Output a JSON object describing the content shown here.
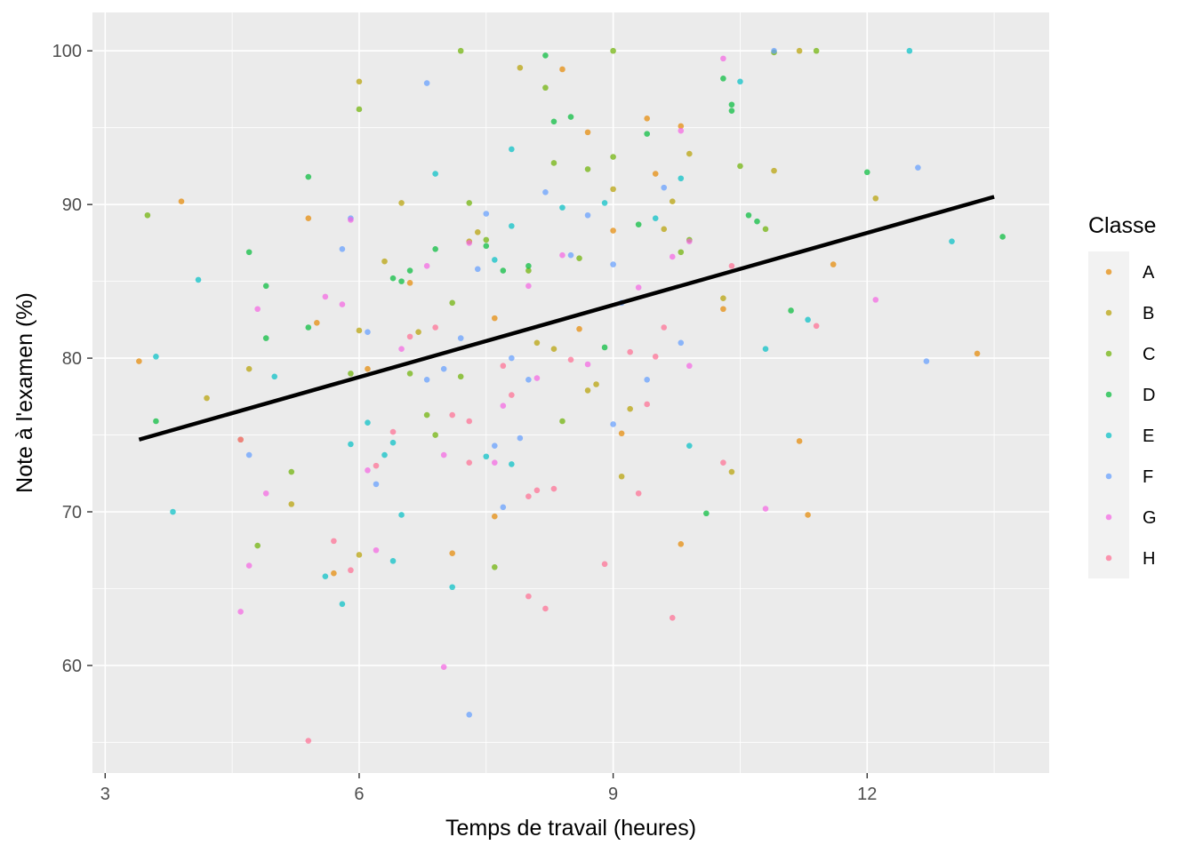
{
  "chart_data": {
    "type": "scatter",
    "title": "",
    "xlabel": "Temps de travail (heures)",
    "ylabel": "Note à l'examen (%)",
    "xlim": [
      2.85,
      14.15
    ],
    "ylim": [
      53,
      102.5
    ],
    "x_ticks": [
      3,
      6,
      9,
      12
    ],
    "x_tick_labels": [
      "3",
      "6",
      "9",
      "12"
    ],
    "y_ticks": [
      60,
      70,
      80,
      90,
      100
    ],
    "y_tick_labels": [
      "60",
      "70",
      "80",
      "90",
      "100"
    ],
    "grid": true,
    "legend": {
      "title": "Classe",
      "position": "right",
      "entries": [
        {
          "label": "A",
          "color": "#E58700"
        },
        {
          "label": "B",
          "color": "#B79F00"
        },
        {
          "label": "C",
          "color": "#6BB100"
        },
        {
          "label": "D",
          "color": "#00BA38"
        },
        {
          "label": "E",
          "color": "#00BFC4"
        },
        {
          "label": "F",
          "color": "#619CFF"
        },
        {
          "label": "G",
          "color": "#F564E3"
        },
        {
          "label": "H",
          "color": "#FF6C91"
        }
      ]
    },
    "series": [
      {
        "name": "A",
        "color": "#E58700",
        "points": [
          [
            3.4,
            79.8
          ],
          [
            3.9,
            90.2
          ],
          [
            5.4,
            89.1
          ],
          [
            5.5,
            82.3
          ],
          [
            5.7,
            66.0
          ],
          [
            6.6,
            84.9
          ],
          [
            7.6,
            69.7
          ],
          [
            8.4,
            98.8
          ],
          [
            8.7,
            94.7
          ],
          [
            9.0,
            88.3
          ],
          [
            9.4,
            95.6
          ],
          [
            9.5,
            92.0
          ],
          [
            9.8,
            95.1
          ],
          [
            9.8,
            67.9
          ],
          [
            10.3,
            83.2
          ],
          [
            11.2,
            74.6
          ],
          [
            11.3,
            69.8
          ],
          [
            11.6,
            86.1
          ],
          [
            13.3,
            80.3
          ],
          [
            9.1,
            75.1
          ],
          [
            7.6,
            82.6
          ],
          [
            8.6,
            81.9
          ],
          [
            6.1,
            79.3
          ],
          [
            7.1,
            67.3
          ]
        ]
      },
      {
        "name": "B",
        "color": "#B79F00",
        "points": [
          [
            4.2,
            77.4
          ],
          [
            4.6,
            74.7
          ],
          [
            4.7,
            79.3
          ],
          [
            5.2,
            70.5
          ],
          [
            6.0,
            81.8
          ],
          [
            6.0,
            98.0
          ],
          [
            6.3,
            86.3
          ],
          [
            6.5,
            90.1
          ],
          [
            6.7,
            81.7
          ],
          [
            7.3,
            87.6
          ],
          [
            7.4,
            88.2
          ],
          [
            7.9,
            98.9
          ],
          [
            8.1,
            81.0
          ],
          [
            8.7,
            77.9
          ],
          [
            9.0,
            91.0
          ],
          [
            9.1,
            72.3
          ],
          [
            9.6,
            88.4
          ],
          [
            9.7,
            90.2
          ],
          [
            9.9,
            93.3
          ],
          [
            10.3,
            83.9
          ],
          [
            10.4,
            72.6
          ],
          [
            10.9,
            92.2
          ],
          [
            11.2,
            100.0
          ],
          [
            12.1,
            90.4
          ],
          [
            6.0,
            67.2
          ],
          [
            8.3,
            80.6
          ],
          [
            8.8,
            78.3
          ],
          [
            9.2,
            76.7
          ]
        ]
      },
      {
        "name": "C",
        "color": "#6BB100",
        "points": [
          [
            3.5,
            89.3
          ],
          [
            4.8,
            67.8
          ],
          [
            5.2,
            72.6
          ],
          [
            6.0,
            96.2
          ],
          [
            6.8,
            76.3
          ],
          [
            7.2,
            100.0
          ],
          [
            7.3,
            90.1
          ],
          [
            7.5,
            87.7
          ],
          [
            7.6,
            66.4
          ],
          [
            8.0,
            85.7
          ],
          [
            8.2,
            97.6
          ],
          [
            8.3,
            92.7
          ],
          [
            8.6,
            86.5
          ],
          [
            8.7,
            92.3
          ],
          [
            9.0,
            100.0
          ],
          [
            9.0,
            93.1
          ],
          [
            9.8,
            86.9
          ],
          [
            9.9,
            87.7
          ],
          [
            10.5,
            92.5
          ],
          [
            10.8,
            88.4
          ],
          [
            10.9,
            99.9
          ],
          [
            11.4,
            100.0
          ],
          [
            7.1,
            83.6
          ],
          [
            6.6,
            79.0
          ],
          [
            8.4,
            75.9
          ],
          [
            7.2,
            78.8
          ],
          [
            6.9,
            75.0
          ],
          [
            5.9,
            79.0
          ]
        ]
      },
      {
        "name": "D",
        "color": "#00BA38",
        "points": [
          [
            3.6,
            75.9
          ],
          [
            4.7,
            86.9
          ],
          [
            4.9,
            81.3
          ],
          [
            4.9,
            84.7
          ],
          [
            5.4,
            91.8
          ],
          [
            5.4,
            82.0
          ],
          [
            6.4,
            85.2
          ],
          [
            6.5,
            85.0
          ],
          [
            6.6,
            85.7
          ],
          [
            6.9,
            87.1
          ],
          [
            7.5,
            87.3
          ],
          [
            7.7,
            85.7
          ],
          [
            8.0,
            86.0
          ],
          [
            8.2,
            99.7
          ],
          [
            8.5,
            95.7
          ],
          [
            8.3,
            95.4
          ],
          [
            9.3,
            88.7
          ],
          [
            9.4,
            94.6
          ],
          [
            10.3,
            98.2
          ],
          [
            10.4,
            96.5
          ],
          [
            10.4,
            96.1
          ],
          [
            10.6,
            89.3
          ],
          [
            10.7,
            88.9
          ],
          [
            11.1,
            83.1
          ],
          [
            12.0,
            92.1
          ],
          [
            13.6,
            87.9
          ],
          [
            10.1,
            69.9
          ],
          [
            8.9,
            80.7
          ]
        ]
      },
      {
        "name": "E",
        "color": "#00BFC4",
        "points": [
          [
            3.6,
            80.1
          ],
          [
            3.8,
            70.0
          ],
          [
            4.1,
            85.1
          ],
          [
            5.0,
            78.8
          ],
          [
            5.6,
            65.8
          ],
          [
            5.8,
            64.0
          ],
          [
            5.9,
            74.4
          ],
          [
            6.1,
            75.8
          ],
          [
            6.3,
            73.7
          ],
          [
            6.4,
            74.5
          ],
          [
            6.4,
            66.8
          ],
          [
            6.5,
            69.8
          ],
          [
            6.9,
            92.0
          ],
          [
            7.1,
            65.1
          ],
          [
            7.5,
            73.6
          ],
          [
            7.6,
            86.4
          ],
          [
            7.8,
            88.6
          ],
          [
            7.8,
            93.6
          ],
          [
            8.4,
            89.8
          ],
          [
            8.9,
            90.1
          ],
          [
            9.5,
            89.1
          ],
          [
            9.8,
            91.7
          ],
          [
            9.9,
            74.3
          ],
          [
            10.5,
            98.0
          ],
          [
            10.8,
            80.6
          ],
          [
            11.3,
            82.5
          ],
          [
            12.5,
            100.0
          ],
          [
            13.0,
            87.6
          ],
          [
            7.8,
            73.1
          ]
        ]
      },
      {
        "name": "F",
        "color": "#619CFF",
        "points": [
          [
            4.7,
            73.7
          ],
          [
            5.8,
            87.1
          ],
          [
            5.9,
            89.1
          ],
          [
            6.1,
            81.7
          ],
          [
            6.2,
            71.8
          ],
          [
            6.8,
            97.9
          ],
          [
            6.8,
            78.6
          ],
          [
            7.0,
            79.3
          ],
          [
            7.2,
            81.3
          ],
          [
            7.4,
            85.8
          ],
          [
            7.5,
            89.4
          ],
          [
            7.6,
            74.3
          ],
          [
            7.8,
            80.0
          ],
          [
            7.9,
            74.8
          ],
          [
            8.2,
            90.8
          ],
          [
            8.5,
            86.7
          ],
          [
            8.7,
            89.3
          ],
          [
            9.0,
            86.1
          ],
          [
            9.0,
            75.7
          ],
          [
            9.1,
            83.6
          ],
          [
            9.6,
            91.1
          ],
          [
            9.8,
            81.0
          ],
          [
            10.9,
            100.0
          ],
          [
            12.6,
            92.4
          ],
          [
            12.7,
            79.8
          ],
          [
            7.3,
            56.8
          ],
          [
            8.0,
            78.6
          ],
          [
            7.7,
            70.3
          ],
          [
            9.4,
            78.6
          ]
        ]
      },
      {
        "name": "G",
        "color": "#F564E3",
        "points": [
          [
            4.6,
            63.5
          ],
          [
            4.7,
            66.5
          ],
          [
            4.8,
            83.2
          ],
          [
            4.9,
            71.2
          ],
          [
            5.6,
            84.0
          ],
          [
            5.8,
            83.5
          ],
          [
            5.9,
            89.0
          ],
          [
            6.1,
            72.7
          ],
          [
            6.2,
            67.5
          ],
          [
            6.5,
            80.6
          ],
          [
            6.8,
            86.0
          ],
          [
            7.0,
            73.7
          ],
          [
            7.0,
            59.9
          ],
          [
            7.3,
            87.5
          ],
          [
            7.6,
            73.2
          ],
          [
            7.7,
            76.9
          ],
          [
            8.0,
            84.7
          ],
          [
            8.1,
            78.7
          ],
          [
            8.4,
            86.7
          ],
          [
            8.7,
            79.6
          ],
          [
            9.3,
            84.6
          ],
          [
            9.7,
            86.6
          ],
          [
            9.8,
            94.8
          ],
          [
            9.9,
            79.5
          ],
          [
            10.3,
            99.5
          ],
          [
            10.8,
            70.2
          ],
          [
            12.1,
            83.8
          ],
          [
            9.9,
            87.6
          ]
        ]
      },
      {
        "name": "H",
        "color": "#FF6C91",
        "points": [
          [
            4.6,
            74.7
          ],
          [
            5.4,
            55.1
          ],
          [
            5.7,
            68.1
          ],
          [
            5.9,
            66.2
          ],
          [
            6.2,
            73.0
          ],
          [
            6.4,
            75.2
          ],
          [
            6.9,
            82.0
          ],
          [
            7.1,
            76.3
          ],
          [
            7.3,
            75.9
          ],
          [
            7.3,
            73.2
          ],
          [
            7.7,
            79.5
          ],
          [
            7.8,
            77.6
          ],
          [
            8.0,
            71.0
          ],
          [
            8.0,
            64.5
          ],
          [
            8.1,
            71.4
          ],
          [
            8.2,
            63.7
          ],
          [
            8.3,
            71.5
          ],
          [
            8.5,
            79.9
          ],
          [
            8.9,
            66.6
          ],
          [
            9.2,
            80.4
          ],
          [
            9.3,
            71.2
          ],
          [
            9.4,
            77.0
          ],
          [
            9.5,
            80.1
          ],
          [
            9.6,
            82.0
          ],
          [
            9.7,
            63.1
          ],
          [
            10.3,
            73.2
          ],
          [
            10.4,
            86.0
          ],
          [
            11.4,
            82.1
          ],
          [
            6.6,
            81.4
          ]
        ]
      }
    ],
    "trendline": {
      "x": [
        3.4,
        13.5
      ],
      "y": [
        74.7,
        90.5
      ],
      "color": "#000000"
    }
  }
}
